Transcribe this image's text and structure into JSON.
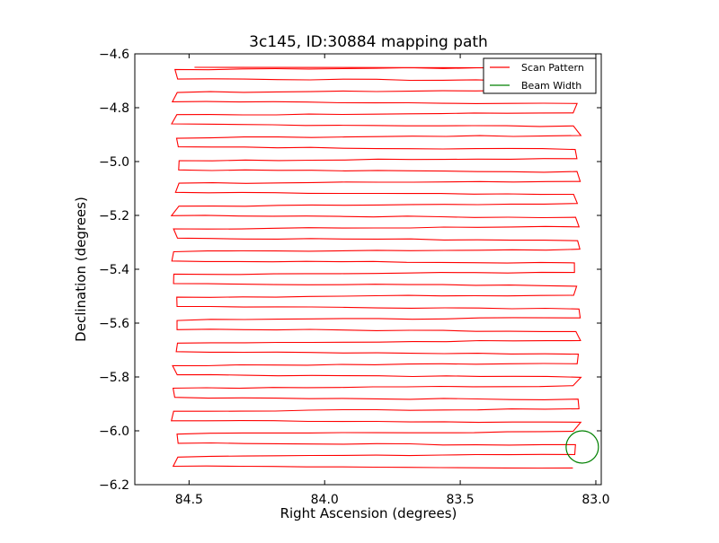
{
  "chart_data": {
    "type": "line",
    "title": "3c145, ID:30884 mapping path",
    "xlabel": "Right Ascension (degrees)",
    "ylabel": "Declination (degrees)",
    "xlim": [
      84.7,
      82.98
    ],
    "ylim": [
      -6.2,
      -4.6
    ],
    "x_inverted": true,
    "xticks": [
      84.5,
      84.0,
      83.5,
      83.0
    ],
    "xtick_labels": [
      "84.5",
      "84.0",
      "83.5",
      "83.0"
    ],
    "yticks": [
      -4.6,
      -4.8,
      -5.0,
      -5.2,
      -5.4,
      -5.6,
      -5.8,
      -6.0,
      -6.2
    ],
    "ytick_labels": [
      "−4.6",
      "−4.8",
      "−5.0",
      "−5.2",
      "−5.4",
      "−5.6",
      "−5.8",
      "−6.0",
      "−6.2"
    ],
    "grid": false,
    "legend_position": "top-right",
    "series": [
      {
        "name": "Scan Pattern",
        "color": "#ff0000",
        "kind": "raster-scan",
        "x_left": 84.55,
        "x_right": 83.07,
        "dec_start": -4.65,
        "dec_end": -6.13,
        "row_count": 36
      },
      {
        "name": "Beam Width",
        "color": "#008000",
        "kind": "circle",
        "center_ra": 83.05,
        "center_dec": -6.06,
        "radius_deg": 0.06
      }
    ]
  }
}
